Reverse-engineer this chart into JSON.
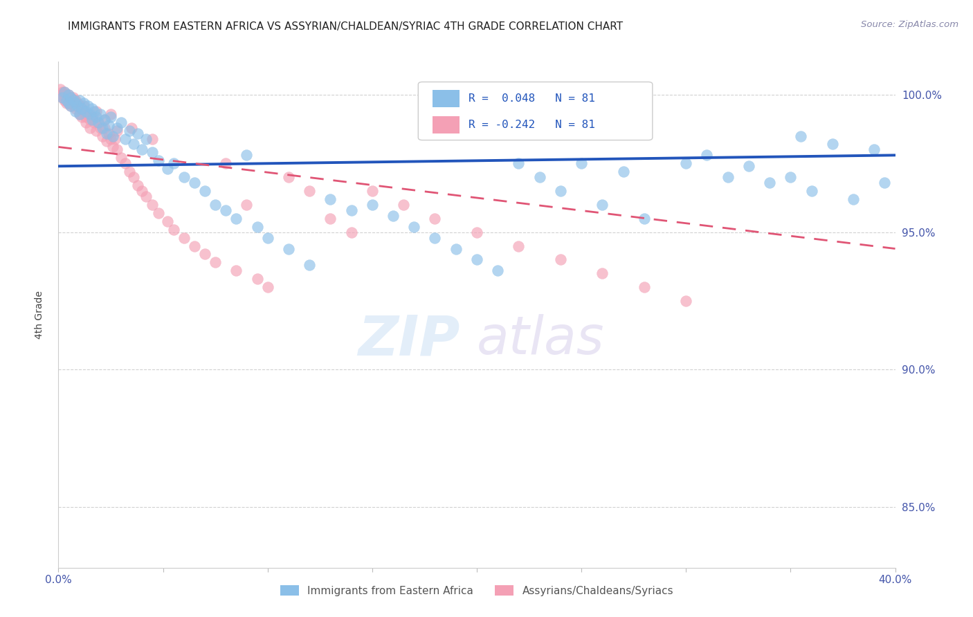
{
  "title": "IMMIGRANTS FROM EASTERN AFRICA VS ASSYRIAN/CHALDEAN/SYRIAC 4TH GRADE CORRELATION CHART",
  "source": "Source: ZipAtlas.com",
  "ylabel": "4th Grade",
  "x_min": 0.0,
  "x_max": 0.4,
  "y_min": 0.828,
  "y_max": 1.012,
  "x_ticks": [
    0.0,
    0.05,
    0.1,
    0.15,
    0.2,
    0.25,
    0.3,
    0.35,
    0.4
  ],
  "y_ticks": [
    0.85,
    0.9,
    0.95,
    1.0
  ],
  "y_tick_labels": [
    "85.0%",
    "90.0%",
    "95.0%",
    "100.0%"
  ],
  "grid_color": "#cccccc",
  "background_color": "#ffffff",
  "series1_color": "#8bbfe8",
  "series2_color": "#f4a0b5",
  "trend1_color": "#2255bb",
  "trend2_color": "#e05575",
  "R1": 0.048,
  "R2": -0.242,
  "N": 81,
  "legend_label1": "Immigrants from Eastern Africa",
  "legend_label2": "Assyrians/Chaldeans/Syriacs",
  "blue_scatter_x": [
    0.002,
    0.003,
    0.004,
    0.005,
    0.005,
    0.006,
    0.006,
    0.007,
    0.008,
    0.008,
    0.009,
    0.01,
    0.01,
    0.011,
    0.012,
    0.013,
    0.014,
    0.015,
    0.016,
    0.016,
    0.017,
    0.018,
    0.019,
    0.02,
    0.021,
    0.022,
    0.023,
    0.024,
    0.025,
    0.026,
    0.028,
    0.03,
    0.032,
    0.034,
    0.036,
    0.038,
    0.04,
    0.042,
    0.045,
    0.048,
    0.052,
    0.055,
    0.06,
    0.065,
    0.07,
    0.075,
    0.08,
    0.085,
    0.09,
    0.095,
    0.1,
    0.11,
    0.12,
    0.13,
    0.14,
    0.15,
    0.16,
    0.17,
    0.18,
    0.19,
    0.2,
    0.21,
    0.22,
    0.23,
    0.24,
    0.26,
    0.28,
    0.3,
    0.32,
    0.34,
    0.36,
    0.38,
    0.355,
    0.37,
    0.39,
    0.25,
    0.27,
    0.31,
    0.33,
    0.35,
    0.395
  ],
  "blue_scatter_y": [
    0.999,
    1.001,
    0.998,
    1.0,
    0.997,
    0.999,
    0.996,
    0.998,
    0.997,
    0.994,
    0.996,
    0.998,
    0.993,
    0.995,
    0.997,
    0.994,
    0.996,
    0.993,
    0.995,
    0.991,
    0.994,
    0.992,
    0.99,
    0.993,
    0.988,
    0.991,
    0.986,
    0.989,
    0.992,
    0.985,
    0.988,
    0.99,
    0.984,
    0.987,
    0.982,
    0.986,
    0.98,
    0.984,
    0.979,
    0.976,
    0.973,
    0.975,
    0.97,
    0.968,
    0.965,
    0.96,
    0.958,
    0.955,
    0.978,
    0.952,
    0.948,
    0.944,
    0.938,
    0.962,
    0.958,
    0.96,
    0.956,
    0.952,
    0.948,
    0.944,
    0.94,
    0.936,
    0.975,
    0.97,
    0.965,
    0.96,
    0.955,
    0.975,
    0.97,
    0.968,
    0.965,
    0.962,
    0.985,
    0.982,
    0.98,
    0.975,
    0.972,
    0.978,
    0.974,
    0.97,
    0.968
  ],
  "pink_scatter_x": [
    0.001,
    0.001,
    0.002,
    0.002,
    0.003,
    0.003,
    0.004,
    0.004,
    0.005,
    0.005,
    0.006,
    0.006,
    0.007,
    0.007,
    0.008,
    0.008,
    0.009,
    0.01,
    0.01,
    0.011,
    0.011,
    0.012,
    0.013,
    0.013,
    0.014,
    0.015,
    0.015,
    0.016,
    0.017,
    0.018,
    0.019,
    0.02,
    0.021,
    0.022,
    0.023,
    0.024,
    0.025,
    0.026,
    0.027,
    0.028,
    0.03,
    0.032,
    0.034,
    0.036,
    0.038,
    0.04,
    0.042,
    0.045,
    0.048,
    0.052,
    0.055,
    0.06,
    0.065,
    0.07,
    0.075,
    0.08,
    0.085,
    0.09,
    0.095,
    0.1,
    0.11,
    0.12,
    0.13,
    0.14,
    0.15,
    0.165,
    0.18,
    0.2,
    0.22,
    0.24,
    0.26,
    0.28,
    0.3,
    0.025,
    0.035,
    0.045,
    0.018,
    0.022,
    0.028,
    0.012,
    0.008
  ],
  "pink_scatter_y": [
    1.002,
    1.0,
    1.001,
    0.999,
    1.001,
    0.998,
    1.0,
    0.997,
    1.0,
    0.997,
    0.999,
    0.996,
    0.999,
    0.996,
    0.998,
    0.995,
    0.997,
    0.996,
    0.993,
    0.995,
    0.992,
    0.994,
    0.992,
    0.99,
    0.993,
    0.991,
    0.988,
    0.992,
    0.99,
    0.987,
    0.99,
    0.988,
    0.985,
    0.988,
    0.983,
    0.986,
    0.984,
    0.981,
    0.984,
    0.98,
    0.977,
    0.975,
    0.972,
    0.97,
    0.967,
    0.965,
    0.963,
    0.96,
    0.957,
    0.954,
    0.951,
    0.948,
    0.945,
    0.942,
    0.939,
    0.975,
    0.936,
    0.96,
    0.933,
    0.93,
    0.97,
    0.965,
    0.955,
    0.95,
    0.965,
    0.96,
    0.955,
    0.95,
    0.945,
    0.94,
    0.935,
    0.93,
    0.925,
    0.993,
    0.988,
    0.984,
    0.994,
    0.991,
    0.987,
    0.996,
    0.997
  ],
  "blue_trend_x": [
    0.0,
    0.4
  ],
  "blue_trend_y": [
    0.974,
    0.978
  ],
  "pink_trend_x": [
    0.0,
    0.4
  ],
  "pink_trend_y": [
    0.981,
    0.944
  ]
}
